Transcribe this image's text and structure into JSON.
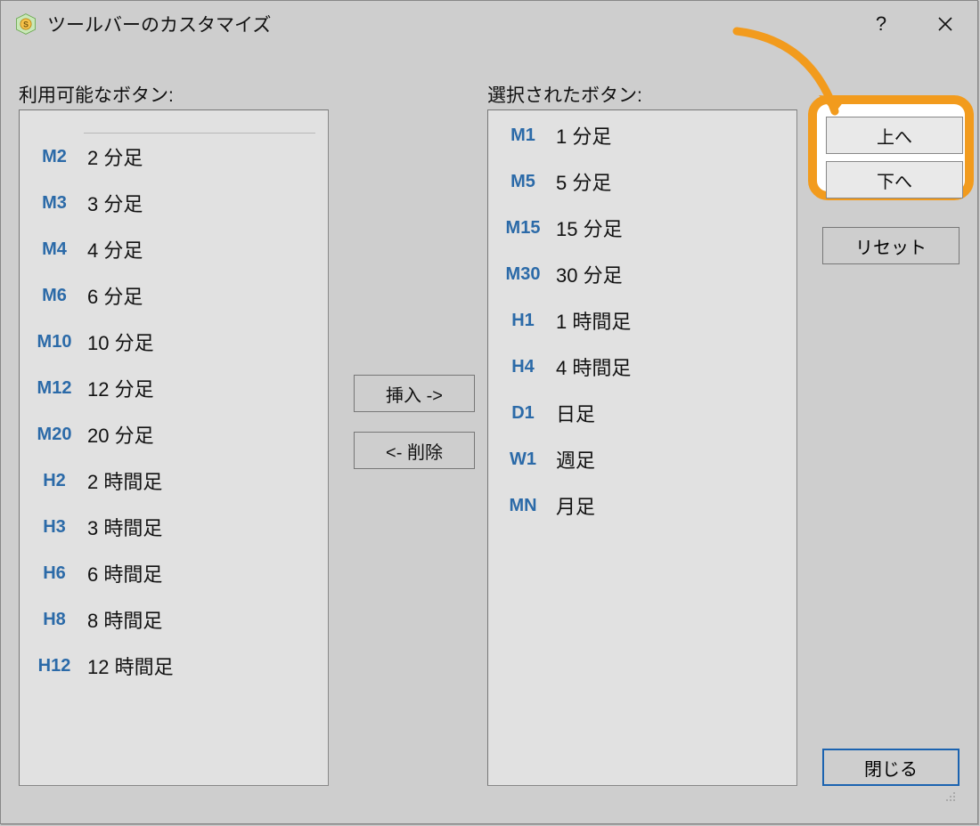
{
  "window": {
    "title": "ツールバーのカスタマイズ"
  },
  "labels": {
    "available": "利用可能なボタン:",
    "selected": "選択されたボタン:"
  },
  "buttons": {
    "insert": "挿入 ->",
    "remove": "<- 削除",
    "up": "上へ",
    "down": "下へ",
    "reset": "リセット",
    "close": "閉じる"
  },
  "available": [
    {
      "code": "M2",
      "label": "2 分足"
    },
    {
      "code": "M3",
      "label": "3 分足"
    },
    {
      "code": "M4",
      "label": "4 分足"
    },
    {
      "code": "M6",
      "label": "6 分足"
    },
    {
      "code": "M10",
      "label": "10 分足"
    },
    {
      "code": "M12",
      "label": "12 分足"
    },
    {
      "code": "M20",
      "label": "20 分足"
    },
    {
      "code": "H2",
      "label": "2 時間足"
    },
    {
      "code": "H3",
      "label": "3 時間足"
    },
    {
      "code": "H6",
      "label": "6 時間足"
    },
    {
      "code": "H8",
      "label": "8 時間足"
    },
    {
      "code": "H12",
      "label": "12 時間足"
    }
  ],
  "selected": [
    {
      "code": "M1",
      "label": "1 分足"
    },
    {
      "code": "M5",
      "label": "5 分足"
    },
    {
      "code": "M15",
      "label": "15 分足"
    },
    {
      "code": "M30",
      "label": "30 分足"
    },
    {
      "code": "H1",
      "label": "1 時間足"
    },
    {
      "code": "H4",
      "label": "4 時間足"
    },
    {
      "code": "D1",
      "label": "日足"
    },
    {
      "code": "W1",
      "label": "週足"
    },
    {
      "code": "MN",
      "label": "月足"
    }
  ],
  "colors": {
    "window_bg": "#cecece",
    "listbox_bg": "#e1e1e1",
    "border": "#888888",
    "code_text": "#2b6aa8",
    "highlight_border": "#f29b1d",
    "highlight_fill": "#ffffff",
    "close_border": "#1b63b0",
    "arrow_stroke": "#f29b1d"
  }
}
